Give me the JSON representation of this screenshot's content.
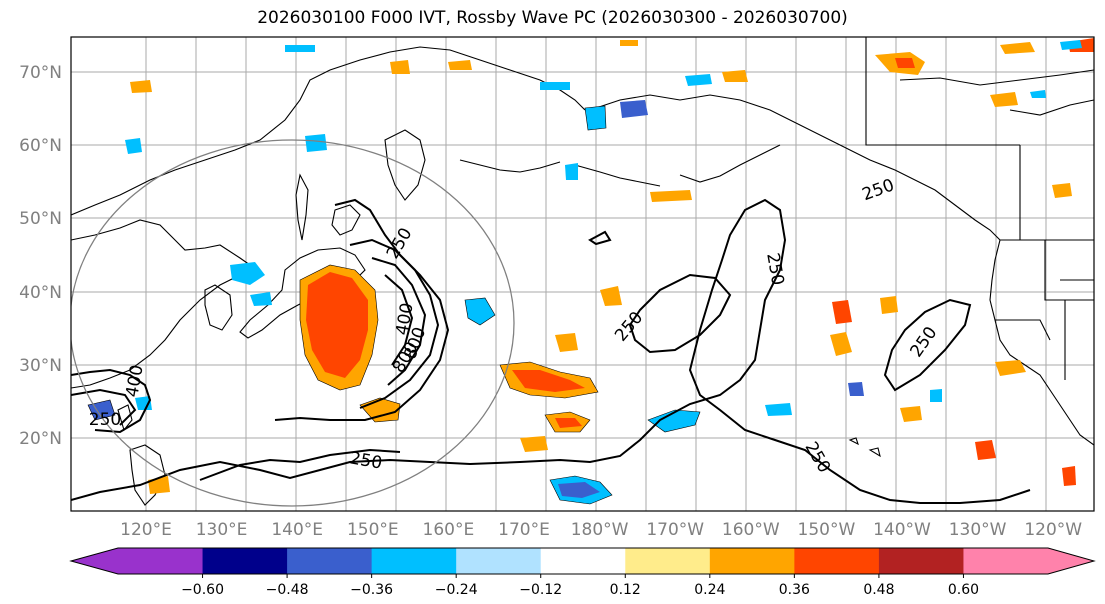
{
  "title": "2026030100 F000 IVT, Rossby Wave PC (2026030300 - 2026030700)",
  "lat_labels": [
    "70°N",
    "60°N",
    "50°N",
    "40°N",
    "30°N",
    "20°N"
  ],
  "lon_labels": [
    "120°E",
    "130°E",
    "140°E",
    "150°E",
    "160°E",
    "170°E",
    "180°W",
    "170°W",
    "160°W",
    "150°W",
    "140°W",
    "130°W",
    "120°W"
  ],
  "contour_labels": [
    "250",
    "250",
    "250",
    "250",
    "250",
    "400",
    "400",
    "800",
    "800",
    "250",
    "250",
    "250",
    "250",
    "250",
    "250",
    "400"
  ],
  "colorbar": {
    "ticks": [
      "−0.60",
      "−0.48",
      "−0.36",
      "−0.24",
      "−0.12",
      "0.12",
      "0.24",
      "0.36",
      "0.48",
      "0.60"
    ],
    "colors": [
      "#9932CC",
      "#00008B",
      "#3A5FCD",
      "#00BFFF",
      "#B0E2FF",
      "#FFFFFF",
      "#FFEC8B",
      "#FFA500",
      "#FF4500",
      "#B22222",
      "#FF82AB"
    ]
  }
}
